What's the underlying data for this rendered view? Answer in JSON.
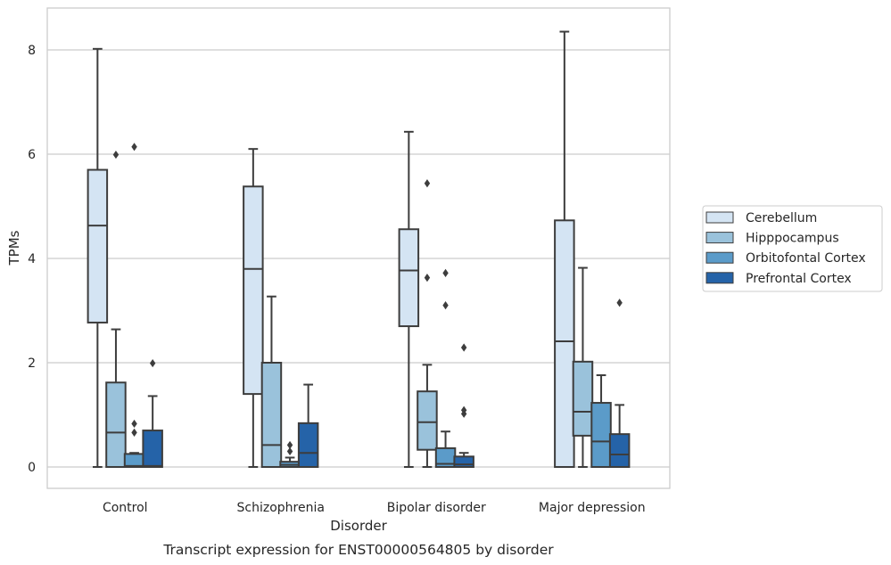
{
  "chart_data": {
    "type": "box",
    "xlabel": "Disorder",
    "ylabel": "TPMs",
    "caption": "Transcript expression for ENST00000564805 by disorder",
    "ylim": [
      -0.4,
      8.8
    ],
    "yticks": [
      0,
      2,
      4,
      6,
      8
    ],
    "grid": "horizontal",
    "legend_position": "right",
    "categories": [
      "Control",
      "Schizophrenia",
      "Bipolar disorder",
      "Major depression"
    ],
    "series": [
      {
        "name": "Cerebellum",
        "color": "#d4e4f3",
        "boxes": [
          {
            "whisker_low": 0,
            "q1": 2.77,
            "median": 4.63,
            "q3": 5.7,
            "whisker_high": 8.02,
            "outliers": []
          },
          {
            "whisker_low": 0,
            "q1": 1.4,
            "median": 3.8,
            "q3": 5.38,
            "whisker_high": 6.1,
            "outliers": []
          },
          {
            "whisker_low": 0,
            "q1": 2.7,
            "median": 3.77,
            "q3": 4.56,
            "whisker_high": 6.43,
            "outliers": []
          },
          {
            "whisker_low": 0,
            "q1": 0,
            "median": 2.41,
            "q3": 4.73,
            "whisker_high": 8.35,
            "outliers": []
          }
        ]
      },
      {
        "name": "Hipppocampus",
        "color": "#9ac2db",
        "boxes": [
          {
            "whisker_low": 0,
            "q1": 0,
            "median": 0.66,
            "q3": 1.62,
            "whisker_high": 2.64,
            "outliers": [
              5.99
            ]
          },
          {
            "whisker_low": 0,
            "q1": 0,
            "median": 0.42,
            "q3": 2.0,
            "whisker_high": 3.27,
            "outliers": []
          },
          {
            "whisker_low": 0,
            "q1": 0.33,
            "median": 0.86,
            "q3": 1.45,
            "whisker_high": 1.96,
            "outliers": [
              3.63,
              5.44
            ]
          },
          {
            "whisker_low": 0,
            "q1": 0.6,
            "median": 1.06,
            "q3": 2.02,
            "whisker_high": 3.82,
            "outliers": []
          }
        ]
      },
      {
        "name": "Orbitofontal Cortex",
        "color": "#5b9bc9",
        "boxes": [
          {
            "whisker_low": 0,
            "q1": 0,
            "median": 0.02,
            "q3": 0.25,
            "whisker_high": 0.27,
            "outliers": [
              0.66,
              0.83,
              6.14
            ]
          },
          {
            "whisker_low": 0,
            "q1": 0,
            "median": 0.04,
            "q3": 0.1,
            "whisker_high": 0.18,
            "outliers": [
              0.3,
              0.42
            ]
          },
          {
            "whisker_low": 0,
            "q1": 0,
            "median": 0.06,
            "q3": 0.36,
            "whisker_high": 0.68,
            "outliers": [
              3.1,
              3.72
            ]
          },
          {
            "whisker_low": 0,
            "q1": 0,
            "median": 0.49,
            "q3": 1.23,
            "whisker_high": 1.76,
            "outliers": []
          }
        ]
      },
      {
        "name": "Prefrontal Cortex",
        "color": "#2563a8",
        "boxes": [
          {
            "whisker_low": 0,
            "q1": 0,
            "median": 0.02,
            "q3": 0.7,
            "whisker_high": 1.36,
            "outliers": [
              1.99
            ]
          },
          {
            "whisker_low": 0,
            "q1": 0,
            "median": 0.27,
            "q3": 0.84,
            "whisker_high": 1.58,
            "outliers": []
          },
          {
            "whisker_low": 0,
            "q1": 0,
            "median": 0.05,
            "q3": 0.2,
            "whisker_high": 0.27,
            "outliers": [
              1.02,
              1.09,
              2.29
            ]
          },
          {
            "whisker_low": 0,
            "q1": 0,
            "median": 0.24,
            "q3": 0.63,
            "whisker_high": 1.19,
            "outliers": [
              3.15
            ]
          }
        ]
      }
    ]
  }
}
